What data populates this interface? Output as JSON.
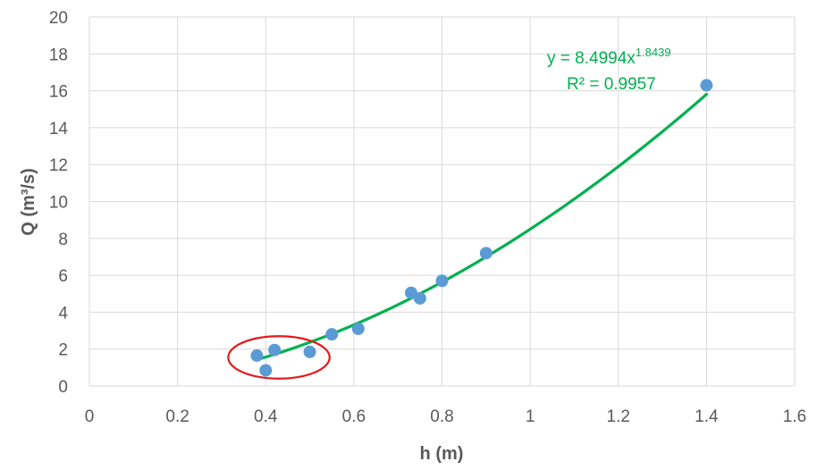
{
  "chart_data": {
    "type": "scatter",
    "xlabel": "h (m)",
    "ylabel": "Q (m³/s)",
    "xlim": [
      0,
      1.6
    ],
    "ylim": [
      0,
      20
    ],
    "x_ticks": [
      "0",
      "0.2",
      "0.4",
      "0.6",
      "0.8",
      "1",
      "1.2",
      "1.4",
      "1.6"
    ],
    "y_ticks": [
      "0",
      "2",
      "4",
      "6",
      "8",
      "10",
      "12",
      "14",
      "16",
      "18",
      "20"
    ],
    "grid": true,
    "legend": "none",
    "series": [
      {
        "points": [
          {
            "x": 0.38,
            "y": 1.65
          },
          {
            "x": 0.4,
            "y": 0.85
          },
          {
            "x": 0.42,
            "y": 1.95
          },
          {
            "x": 0.5,
            "y": 1.85
          },
          {
            "x": 0.55,
            "y": 2.8
          },
          {
            "x": 0.61,
            "y": 3.1
          },
          {
            "x": 0.73,
            "y": 5.05
          },
          {
            "x": 0.75,
            "y": 4.75
          },
          {
            "x": 0.8,
            "y": 5.7
          },
          {
            "x": 0.9,
            "y": 7.2
          },
          {
            "x": 1.4,
            "y": 16.3
          }
        ],
        "color": "#5B9BD5"
      }
    ],
    "trendline": {
      "type": "power",
      "coefficient": 8.4994,
      "exponent": 1.8439,
      "x_range": [
        0.38,
        1.4
      ],
      "color": "#00B050",
      "equation_prefix": "y = 8.4994x",
      "equation_exponent": "1.8439",
      "r_squared_label": "R² = 0.9957"
    },
    "annotation": {
      "shape": "ellipse",
      "color": "#E31A1C",
      "center_x": 0.43,
      "center_y": 1.55,
      "rx": 0.115,
      "ry": 1.15
    }
  }
}
